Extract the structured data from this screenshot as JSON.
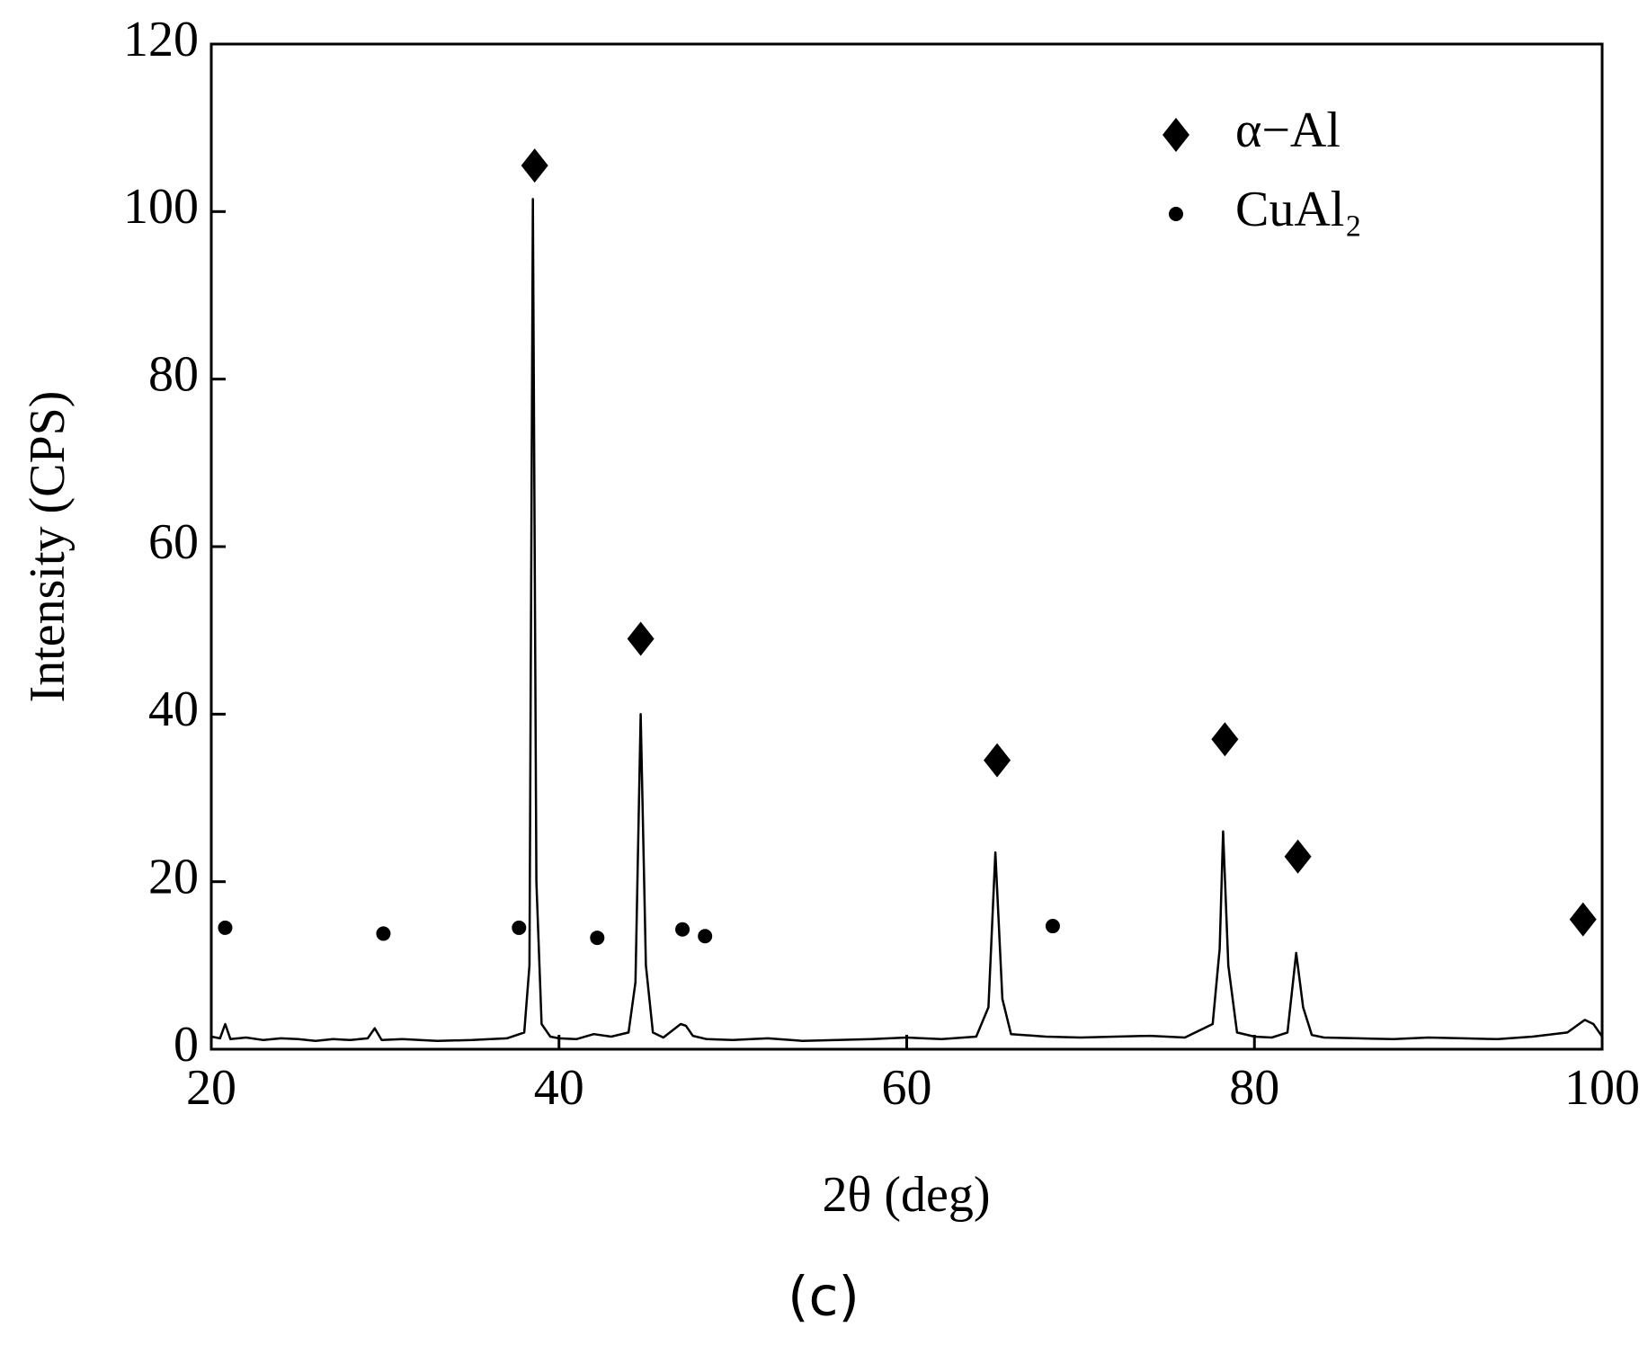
{
  "chart_data": {
    "type": "line",
    "caption": "(c)",
    "x_label": "2θ (deg)",
    "y_label": "Intensity (CPS)",
    "xlim": [
      20,
      100
    ],
    "xticks": [
      20,
      40,
      60,
      80,
      100
    ],
    "ylim": [
      0,
      120
    ],
    "yticks": [
      0,
      20,
      40,
      60,
      80,
      100,
      120
    ],
    "legend": "upper right",
    "series": [
      {
        "color": "#000000",
        "marker": "none",
        "x": [
          20,
          20.5,
          20.8,
          21.1,
          22,
          23,
          24,
          25,
          26,
          27,
          28,
          29,
          29.4,
          29.8,
          31,
          33,
          35,
          37,
          38.0,
          38.3,
          38.5,
          38.7,
          39.0,
          39.5,
          40,
          41,
          42,
          43,
          44,
          44.4,
          44.7,
          45.0,
          45.4,
          46,
          47.0,
          47.3,
          47.7,
          48.5,
          50,
          52,
          54,
          56,
          58,
          60,
          62,
          64,
          64.7,
          65.1,
          65.5,
          66,
          68,
          70,
          72,
          74,
          76,
          77.6,
          78.0,
          78.2,
          78.5,
          79,
          80,
          81,
          81.9,
          82.4,
          82.8,
          83.3,
          84,
          86,
          88,
          90,
          92,
          94,
          96,
          98,
          99,
          99.5,
          100
        ],
        "values": [
          1.5,
          1.3,
          3,
          1.2,
          1.4,
          1.1,
          1.3,
          1.2,
          1.0,
          1.2,
          1.1,
          1.3,
          2.5,
          1.1,
          1.2,
          1.0,
          1.1,
          1.3,
          2,
          10,
          101.5,
          20,
          3,
          1.5,
          1.3,
          1.2,
          1.8,
          1.5,
          2,
          8,
          40,
          10,
          2,
          1.4,
          3,
          2.8,
          1.6,
          1.2,
          1.1,
          1.3,
          1.0,
          1.1,
          1.2,
          1.4,
          1.2,
          1.5,
          5,
          23.5,
          6,
          1.8,
          1.5,
          1.4,
          1.5,
          1.6,
          1.4,
          3,
          12,
          26,
          10,
          2,
          1.5,
          1.4,
          2,
          11.5,
          5,
          1.7,
          1.4,
          1.3,
          1.2,
          1.4,
          1.3,
          1.2,
          1.5,
          2,
          3.5,
          3,
          1.5
        ]
      },
      {
        "name": "α−Al",
        "color": "#000000",
        "marker": "diamond",
        "x": [
          38.6,
          44.7,
          65.2,
          78.3,
          82.5,
          98.9
        ],
        "values": [
          105.5,
          49,
          34.5,
          37,
          23,
          15.5
        ]
      },
      {
        "name": "CuAl₂",
        "color": "#000000",
        "marker": "circle",
        "x": [
          20.8,
          29.9,
          37.7,
          42.2,
          47.1,
          48.4,
          68.4
        ],
        "values": [
          14.5,
          13.8,
          14.5,
          13.3,
          14.3,
          13.5,
          14.7
        ]
      }
    ]
  }
}
